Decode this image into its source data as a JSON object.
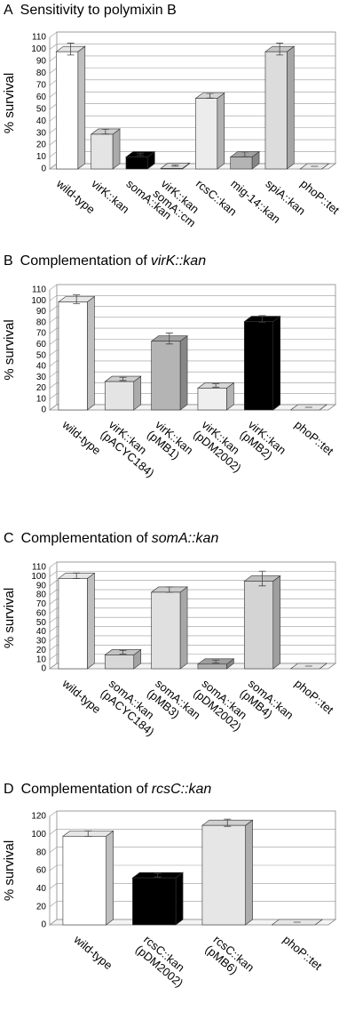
{
  "chart_data": [
    {
      "type": "bar",
      "panel": "A",
      "title": "Sensitivity to polymixin B",
      "ylabel": "% survival",
      "categories": [
        [
          "wild-type"
        ],
        [
          "virK::kan"
        ],
        [
          "somA::kan"
        ],
        [
          "virK::kan",
          "somA::cm"
        ],
        [
          "rcsC::kan"
        ],
        [
          "mig-14::kan"
        ],
        [
          "spiA::kan"
        ],
        [
          "phoP::tet"
        ]
      ],
      "values": [
        98,
        29,
        10,
        0.5,
        59,
        10,
        98,
        0
      ],
      "errors": [
        5,
        2,
        1,
        0.5,
        2,
        2,
        5,
        0
      ],
      "colors": [
        "#ffffff",
        "#e4e4e4",
        "#000000",
        "#f2f2f2",
        "#ececec",
        "#b4b4b4",
        "#dcdcdc",
        "#ffffff"
      ],
      "ylim": [
        0,
        110
      ],
      "yticks": [
        0,
        10,
        20,
        30,
        40,
        50,
        60,
        70,
        80,
        90,
        100,
        110
      ],
      "grid": true
    },
    {
      "type": "bar",
      "panel": "B",
      "title": "Complementation of",
      "title_emphasis": "virK::kan",
      "ylabel": "% survival",
      "categories": [
        [
          "wild-type"
        ],
        [
          "virK::kan",
          "(pACYC184)"
        ],
        [
          "virK::kan",
          "(pMB1)"
        ],
        [
          "virK::kan",
          "(pDM2002)"
        ],
        [
          "virK::kan",
          "(pMB2)"
        ],
        [
          "phoP::tet"
        ]
      ],
      "values": [
        99,
        26,
        63,
        20,
        81,
        0
      ],
      "errors": [
        4,
        1.5,
        5,
        1.5,
        3,
        0
      ],
      "colors": [
        "#ffffff",
        "#e4e4e4",
        "#b4b4b4",
        "#efefef",
        "#000000",
        "#ffffff"
      ],
      "ylim": [
        0,
        110
      ],
      "yticks": [
        0,
        10,
        20,
        30,
        40,
        50,
        60,
        70,
        80,
        90,
        100,
        110
      ],
      "grid": true
    },
    {
      "type": "bar",
      "panel": "C",
      "title": "Complementation of",
      "title_emphasis": "somA::kan",
      "ylabel": "% survival",
      "categories": [
        [
          "wild-type"
        ],
        [
          "somA::kan",
          "(pACYC184)"
        ],
        [
          "somA::kan",
          "(pMB3)"
        ],
        [
          "somA::kan",
          "(pDM2002)"
        ],
        [
          "somA::kan",
          "(pMB4)"
        ],
        [
          "phoP::tet"
        ]
      ],
      "values": [
        98,
        15,
        83,
        5,
        95,
        0
      ],
      "errors": [
        3,
        2,
        3,
        1.5,
        8,
        0
      ],
      "colors": [
        "#ffffff",
        "#d8d8d8",
        "#e0e0e0",
        "#b0b0b0",
        "#d4d4d4",
        "#ffffff"
      ],
      "ylim": [
        0,
        110
      ],
      "yticks": [
        0,
        10,
        20,
        30,
        40,
        50,
        60,
        70,
        80,
        90,
        100,
        110
      ],
      "grid": true
    },
    {
      "type": "bar",
      "panel": "D",
      "title": "Complementation of",
      "title_emphasis": "rcsC::kan",
      "ylabel": "% survival",
      "categories": [
        [
          "wild-type"
        ],
        [
          "rcsC::kan",
          "(pDM2002)"
        ],
        [
          "rcsC::kan",
          "(pMB6)"
        ],
        [
          "phoP::tet"
        ]
      ],
      "values": [
        98,
        52,
        110,
        0
      ],
      "errors": [
        3,
        2,
        4,
        0
      ],
      "colors": [
        "#ffffff",
        "#000000",
        "#e6e6e6",
        "#ffffff"
      ],
      "ylim": [
        0,
        120
      ],
      "yticks": [
        0,
        20,
        40,
        60,
        80,
        100,
        120
      ],
      "grid": true
    }
  ]
}
